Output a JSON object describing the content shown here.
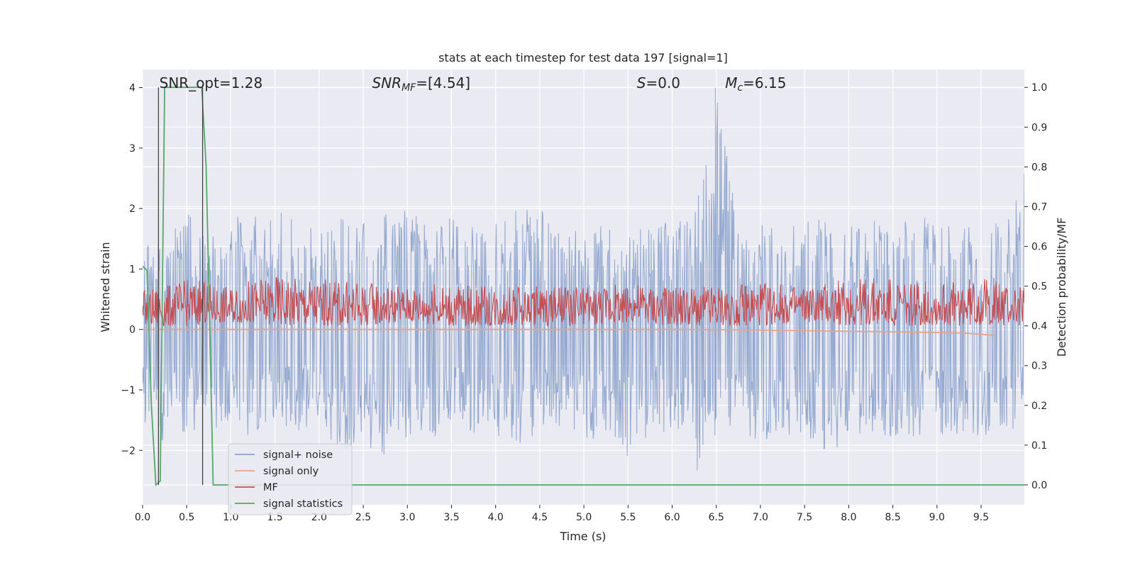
{
  "chart_data": {
    "type": "line",
    "title": "stats at each timestep for test data 197 [signal=1]",
    "xlabel": "Time (s)",
    "ylabel_left": "Whitened strain",
    "ylabel_right": "Detection probability/MF",
    "xlim": [
      0,
      9.99
    ],
    "ylim_left": [
      -2.9,
      4.3
    ],
    "ylim_right": [
      -0.05,
      1.045
    ],
    "x_ticks": [
      "0.0",
      "0.5",
      "1.0",
      "1.5",
      "2.0",
      "2.5",
      "3.0",
      "3.5",
      "4.0",
      "4.5",
      "5.0",
      "5.5",
      "6.0",
      "6.5",
      "7.0",
      "7.5",
      "8.0",
      "8.5",
      "9.0",
      "9.5"
    ],
    "y_left_ticks": [
      "4",
      "3",
      "2",
      "1",
      "0",
      "−1",
      "−2"
    ],
    "y_right_ticks": [
      "1.0",
      "0.9",
      "0.8",
      "0.7",
      "0.6",
      "0.5",
      "0.4",
      "0.3",
      "0.2",
      "0.1",
      "0.0"
    ],
    "grid": true,
    "legend_position": "lower-left",
    "annotations": [
      {
        "text": "SNR_opt=1.28",
        "x": 0.19
      },
      {
        "text": "SNR_MF=[4.54]",
        "x": 2.6
      },
      {
        "text": "S=0.0",
        "x": 5.6
      },
      {
        "text": "M_c=6.15",
        "x": 6.6
      }
    ],
    "vertical_lines_x": [
      0.18,
      0.68
    ],
    "series": [
      {
        "name": "signal+ noise",
        "color": "#8da3cc",
        "axis": "left",
        "envelope_x": [
          0.0,
          0.25,
          0.5,
          0.75,
          1.0,
          1.25,
          1.5,
          1.75,
          2.0,
          2.25,
          2.5,
          2.75,
          3.0,
          3.25,
          3.5,
          3.75,
          4.0,
          4.25,
          4.5,
          4.75,
          5.0,
          5.25,
          5.5,
          5.75,
          6.0,
          6.25,
          6.5,
          6.75,
          7.0,
          7.25,
          7.5,
          7.75,
          8.0,
          8.25,
          8.5,
          8.75,
          9.0,
          9.25,
          9.5,
          9.75,
          9.99
        ],
        "envelope_upper": [
          1.4,
          1.6,
          2.0,
          1.5,
          2.0,
          1.9,
          2.1,
          2.0,
          1.8,
          1.9,
          1.8,
          1.9,
          2.1,
          1.9,
          2.0,
          1.7,
          1.8,
          2.0,
          2.2,
          1.6,
          1.7,
          1.9,
          1.6,
          1.8,
          1.8,
          2.0,
          4.0,
          1.8,
          1.8,
          1.6,
          1.9,
          1.8,
          1.8,
          1.9,
          1.8,
          1.9,
          1.8,
          1.7,
          1.7,
          2.0,
          2.6
        ],
        "envelope_lower": [
          -1.5,
          -1.9,
          -1.8,
          -1.6,
          -1.7,
          -1.8,
          -1.5,
          -1.7,
          -1.6,
          -2.1,
          -1.9,
          -2.1,
          -1.8,
          -1.8,
          -1.7,
          -1.8,
          -1.8,
          -1.9,
          -1.7,
          -1.6,
          -1.9,
          -1.8,
          -2.2,
          -1.7,
          -1.7,
          -2.5,
          -1.7,
          -1.8,
          -1.9,
          -1.8,
          -1.7,
          -2.1,
          -1.8,
          -1.7,
          -1.9,
          -1.8,
          -1.7,
          -1.9,
          -1.8,
          -1.7,
          -1.6
        ]
      },
      {
        "name": "signal only",
        "color": "#e8a486",
        "axis": "left",
        "x": [
          0.0,
          1.0,
          2.0,
          3.0,
          4.0,
          5.0,
          6.0,
          7.0,
          7.5,
          8.0,
          8.5,
          9.0,
          9.3,
          9.5,
          9.65
        ],
        "y": [
          0.0,
          0.0,
          0.0,
          0.0,
          0.0,
          0.0,
          0.0,
          -0.01,
          -0.02,
          -0.03,
          -0.04,
          -0.05,
          -0.06,
          -0.08,
          -0.1
        ]
      },
      {
        "name": "MF",
        "color": "#c44e52",
        "axis": "right",
        "envelope_x": [
          0.0,
          0.5,
          1.0,
          1.5,
          2.0,
          2.5,
          3.0,
          3.5,
          4.0,
          4.5,
          5.0,
          5.5,
          6.0,
          6.5,
          7.0,
          7.5,
          8.0,
          8.5,
          9.0,
          9.5,
          9.99
        ],
        "envelope_upper": [
          0.49,
          0.52,
          0.5,
          0.53,
          0.52,
          0.51,
          0.5,
          0.51,
          0.5,
          0.5,
          0.5,
          0.51,
          0.5,
          0.5,
          0.51,
          0.5,
          0.52,
          0.52,
          0.51,
          0.52,
          0.5
        ],
        "envelope_lower": [
          0.4,
          0.4,
          0.41,
          0.4,
          0.4,
          0.4,
          0.41,
          0.4,
          0.4,
          0.4,
          0.4,
          0.41,
          0.4,
          0.4,
          0.4,
          0.41,
          0.4,
          0.4,
          0.4,
          0.4,
          0.4
        ]
      },
      {
        "name": "signal statistics",
        "color": "#55a868",
        "axis": "right",
        "x": [
          0.0,
          0.05,
          0.1,
          0.15,
          0.2,
          0.25,
          0.3,
          0.5,
          0.67,
          0.72,
          0.76,
          0.8,
          1.0,
          5.0,
          9.99
        ],
        "y": [
          0.55,
          0.54,
          0.2,
          0.0,
          0.01,
          1.0,
          1.0,
          1.0,
          1.0,
          0.8,
          0.4,
          0.0,
          0.0,
          0.0,
          0.0
        ]
      }
    ],
    "colors": {
      "plot_bg": "#eaeaf2",
      "grid": "#ffffff"
    }
  }
}
